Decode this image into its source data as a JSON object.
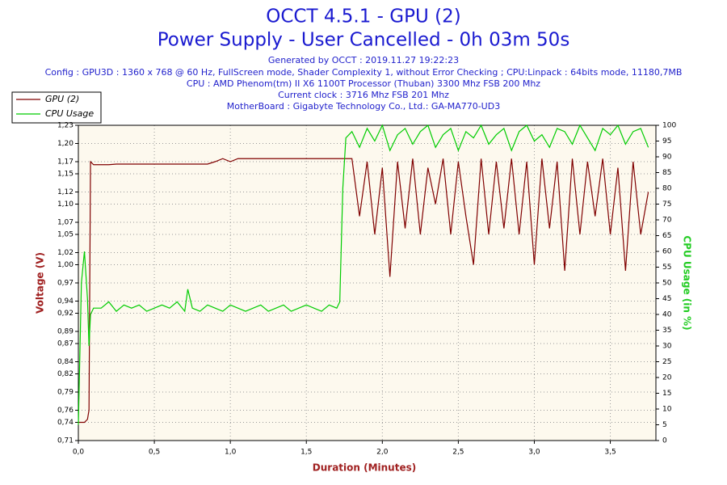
{
  "chart_data": {
    "type": "line",
    "title": "OCCT 4.5.1 - GPU (2)",
    "subtitle": "Power Supply - User Cancelled - 0h 03m 50s",
    "info": [
      "Generated by OCCT : 2019.11.27 19:22:23",
      "Config : GPU3D : 1360 x 768 @ 60 Hz, FullScreen mode, Shader Complexity 1, without Error Checking ; CPU:Linpack : 64bits mode, 11180,7MB",
      "CPU : AMD Phenom(tm) II X6 1100T Processor (Thuban) 3300 Mhz FSB 200 Mhz",
      "Current clock : 3716 Mhz FSB 201 Mhz",
      "MotherBoard : Gigabyte Technology Co., Ltd.: GA-MA770-UD3"
    ],
    "x_label": "Duration (Minutes)",
    "y_label": "Voltage (V)",
    "y2_label": "CPU Usage (in %)",
    "grid": true,
    "legend": "top-left",
    "x": [
      0,
      0.02,
      0.04,
      0.06,
      0.07,
      0.08,
      0.1,
      0.15,
      0.2,
      0.25,
      0.3,
      0.35,
      0.4,
      0.45,
      0.5,
      0.55,
      0.6,
      0.65,
      0.7,
      0.72,
      0.75,
      0.8,
      0.85,
      0.9,
      0.95,
      1.0,
      1.05,
      1.1,
      1.15,
      1.2,
      1.25,
      1.3,
      1.35,
      1.4,
      1.45,
      1.5,
      1.55,
      1.6,
      1.65,
      1.7,
      1.72,
      1.74,
      1.76,
      1.8,
      1.85,
      1.9,
      1.95,
      2.0,
      2.05,
      2.1,
      2.15,
      2.2,
      2.25,
      2.3,
      2.35,
      2.4,
      2.45,
      2.5,
      2.55,
      2.6,
      2.65,
      2.7,
      2.75,
      2.8,
      2.85,
      2.9,
      2.95,
      3.0,
      3.05,
      3.1,
      3.15,
      3.2,
      3.25,
      3.3,
      3.35,
      3.4,
      3.45,
      3.5,
      3.55,
      3.6,
      3.65,
      3.7,
      3.75
    ],
    "series": [
      {
        "name": "GPU (2)",
        "color": "#800000",
        "axis": "y",
        "values": [
          0.74,
          0.74,
          0.74,
          0.745,
          0.76,
          1.17,
          1.165,
          1.165,
          1.165,
          1.166,
          1.166,
          1.166,
          1.166,
          1.166,
          1.166,
          1.166,
          1.166,
          1.166,
          1.166,
          1.166,
          1.166,
          1.166,
          1.166,
          1.17,
          1.175,
          1.17,
          1.175,
          1.175,
          1.175,
          1.175,
          1.175,
          1.175,
          1.175,
          1.175,
          1.175,
          1.175,
          1.175,
          1.175,
          1.175,
          1.175,
          1.175,
          1.175,
          1.175,
          1.175,
          1.08,
          1.17,
          1.05,
          1.16,
          0.98,
          1.17,
          1.06,
          1.175,
          1.05,
          1.16,
          1.1,
          1.175,
          1.05,
          1.17,
          1.08,
          1.0,
          1.175,
          1.05,
          1.17,
          1.06,
          1.175,
          1.05,
          1.17,
          1.0,
          1.175,
          1.06,
          1.17,
          0.99,
          1.175,
          1.05,
          1.17,
          1.08,
          1.175,
          1.05,
          1.16,
          0.99,
          1.17,
          1.05,
          1.12
        ]
      },
      {
        "name": "CPU Usage",
        "color": "#00cc00",
        "axis": "y2",
        "values": [
          5,
          50,
          60,
          45,
          30,
          40,
          42,
          42,
          44,
          41,
          43,
          42,
          43,
          41,
          42,
          43,
          42,
          44,
          41,
          48,
          42,
          41,
          43,
          42,
          41,
          43,
          42,
          41,
          42,
          43,
          41,
          42,
          43,
          41,
          42,
          43,
          42,
          41,
          43,
          42,
          44,
          80,
          96,
          98,
          93,
          99,
          95,
          100,
          92,
          97,
          99,
          94,
          98,
          100,
          93,
          97,
          99,
          92,
          98,
          96,
          100,
          94,
          97,
          99,
          92,
          98,
          100,
          95,
          97,
          93,
          99,
          98,
          94,
          100,
          96,
          92,
          99,
          97,
          100,
          94,
          98,
          99,
          93
        ]
      }
    ],
    "xlim": [
      0,
      3.8
    ],
    "xticks": [
      {
        "value": 0,
        "label": "0,0"
      },
      {
        "value": 0.5,
        "label": "0,5"
      },
      {
        "value": 1,
        "label": "1,0"
      },
      {
        "value": 1.5,
        "label": "1,5"
      },
      {
        "value": 2,
        "label": "2,0"
      },
      {
        "value": 2.5,
        "label": "2,5"
      },
      {
        "value": 3,
        "label": "3,0"
      },
      {
        "value": 3.5,
        "label": "3,5"
      }
    ],
    "ylim": [
      0.71,
      1.23
    ],
    "yticks": [
      {
        "value": 0.71,
        "label": "0,71"
      },
      {
        "value": 0.74,
        "label": "0,74"
      },
      {
        "value": 0.76,
        "label": "0,76"
      },
      {
        "value": 0.79,
        "label": "0,79"
      },
      {
        "value": 0.82,
        "label": "0,82"
      },
      {
        "value": 0.84,
        "label": "0,84"
      },
      {
        "value": 0.87,
        "label": "0,87"
      },
      {
        "value": 0.89,
        "label": "0,89"
      },
      {
        "value": 0.92,
        "label": "0,92"
      },
      {
        "value": 0.94,
        "label": "0,94"
      },
      {
        "value": 0.97,
        "label": "0,97"
      },
      {
        "value": 1.0,
        "label": "1,00"
      },
      {
        "value": 1.02,
        "label": "1,02"
      },
      {
        "value": 1.05,
        "label": "1,05"
      },
      {
        "value": 1.07,
        "label": "1,07"
      },
      {
        "value": 1.1,
        "label": "1,10"
      },
      {
        "value": 1.12,
        "label": "1,12"
      },
      {
        "value": 1.15,
        "label": "1,15"
      },
      {
        "value": 1.17,
        "label": "1,17"
      },
      {
        "value": 1.2,
        "label": "1,20"
      },
      {
        "value": 1.23,
        "label": "1,23"
      }
    ],
    "y2lim": [
      0,
      100
    ],
    "y2ticks": [
      0,
      5,
      10,
      15,
      20,
      25,
      30,
      35,
      40,
      45,
      50,
      55,
      60,
      65,
      70,
      75,
      80,
      85,
      90,
      95,
      100
    ]
  }
}
